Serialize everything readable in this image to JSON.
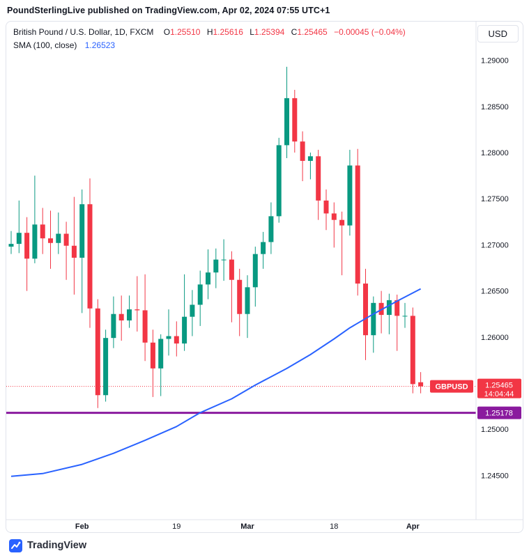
{
  "header": {
    "attribution": "PoundSterlingLive published on TradingView.com, Apr 02, 2024 07:55 UTC+1"
  },
  "legend": {
    "symbol": "British Pound / U.S. Dollar, 1D, FXCM",
    "o_label": "O",
    "o_value": "1.25510",
    "h_label": "H",
    "h_value": "1.25616",
    "l_label": "L",
    "l_value": "1.25394",
    "c_label": "C",
    "c_value": "1.25465",
    "change": "−0.00045 (−0.04%)",
    "sma_label": "SMA (100, close)",
    "sma_value": "1.26523"
  },
  "axis": {
    "currency_button": "USD"
  },
  "badges": {
    "symbol_tag": "GBPUSD",
    "last_price": "1.25465",
    "countdown": "14:04:44",
    "level_price": "1.25178"
  },
  "footer": {
    "brand": "TradingView"
  },
  "colors": {
    "up": "#089981",
    "down": "#f23645",
    "sma": "#2962ff",
    "level": "#8a1a9e",
    "axis_text": "#131722",
    "border": "#e0e3eb",
    "badge_text": "#ffffff"
  },
  "chart_data": {
    "type": "candlestick",
    "title": "British Pound / U.S. Dollar",
    "symbol": "GBPUSD",
    "interval": "1D",
    "exchange": "FXCM",
    "last": {
      "open": 1.2551,
      "high": 1.25616,
      "low": 1.25394,
      "close": 1.25465,
      "change": -0.00045,
      "change_pct": -0.04
    },
    "price_range": [
      1.2402,
      1.2942
    ],
    "levels": {
      "current_price": 1.25465,
      "horizontal_line": 1.25178
    },
    "y_ticks": [
      {
        "price": 1.29,
        "label": "1.29000"
      },
      {
        "price": 1.285,
        "label": "1.28500"
      },
      {
        "price": 1.28,
        "label": "1.28000"
      },
      {
        "price": 1.275,
        "label": "1.27500"
      },
      {
        "price": 1.27,
        "label": "1.27000"
      },
      {
        "price": 1.265,
        "label": "1.26500"
      },
      {
        "price": 1.26,
        "label": "1.26000"
      },
      {
        "price": 1.25,
        "label": "1.25000"
      },
      {
        "price": 1.245,
        "label": "1.24500"
      }
    ],
    "x_ticks": [
      {
        "index": 9,
        "label": "Feb",
        "major": true
      },
      {
        "index": 21,
        "label": "19",
        "major": false
      },
      {
        "index": 30,
        "label": "Mar",
        "major": true
      },
      {
        "index": 41,
        "label": "18",
        "major": false
      },
      {
        "index": 51,
        "label": "Apr",
        "major": true
      }
    ],
    "candle_columns": [
      "date",
      "open",
      "high",
      "low",
      "close"
    ],
    "candles": [
      [
        "Jan 19",
        1.2698,
        1.2715,
        1.269,
        1.2701
      ],
      [
        "Jan 22",
        1.2701,
        1.2748,
        1.2691,
        1.2713
      ],
      [
        "Jan 23",
        1.2713,
        1.273,
        1.265,
        1.2685
      ],
      [
        "Jan 24",
        1.2685,
        1.2775,
        1.268,
        1.2722
      ],
      [
        "Jan 25",
        1.2722,
        1.274,
        1.269,
        1.2707
      ],
      [
        "Jan 26",
        1.2707,
        1.2737,
        1.2674,
        1.2702
      ],
      [
        "Jan 29",
        1.2702,
        1.2735,
        1.269,
        1.2712
      ],
      [
        "Jan 30",
        1.2712,
        1.2725,
        1.2662,
        1.2699
      ],
      [
        "Jan 31",
        1.2699,
        1.2752,
        1.2646,
        1.2686
      ],
      [
        "Feb 1",
        1.2686,
        1.276,
        1.2626,
        1.2744
      ],
      [
        "Feb 2",
        1.2744,
        1.2772,
        1.261,
        1.2631
      ],
      [
        "Feb 5",
        1.2631,
        1.2641,
        1.2523,
        1.2537
      ],
      [
        "Feb 6",
        1.2537,
        1.2608,
        1.253,
        1.2599
      ],
      [
        "Feb 7",
        1.2599,
        1.2644,
        1.2588,
        1.2625
      ],
      [
        "Feb 8",
        1.2625,
        1.2645,
        1.2596,
        1.2618
      ],
      [
        "Feb 9",
        1.2618,
        1.2645,
        1.261,
        1.263
      ],
      [
        "Feb 12",
        1.263,
        1.2666,
        1.2606,
        1.2629
      ],
      [
        "Feb 13",
        1.2629,
        1.2668,
        1.2574,
        1.2594
      ],
      [
        "Feb 14",
        1.2594,
        1.2608,
        1.2535,
        1.2566
      ],
      [
        "Feb 15",
        1.2566,
        1.2603,
        1.2536,
        1.2598
      ],
      [
        "Feb 16",
        1.2598,
        1.263,
        1.258,
        1.2601
      ],
      [
        "Feb 19",
        1.2601,
        1.2617,
        1.2579,
        1.2593
      ],
      [
        "Feb 20",
        1.2593,
        1.2668,
        1.2585,
        1.2622
      ],
      [
        "Feb 21",
        1.2622,
        1.2651,
        1.2601,
        1.2635
      ],
      [
        "Feb 22",
        1.2635,
        1.2672,
        1.2612,
        1.2657
      ],
      [
        "Feb 23",
        1.2657,
        1.2695,
        1.2641,
        1.267
      ],
      [
        "Feb 26",
        1.267,
        1.2696,
        1.2653,
        1.2684
      ],
      [
        "Feb 27",
        1.2684,
        1.2706,
        1.2661,
        1.2684
      ],
      [
        "Feb 28",
        1.2684,
        1.2693,
        1.2616,
        1.2662
      ],
      [
        "Feb 29",
        1.2662,
        1.2674,
        1.2601,
        1.2625
      ],
      [
        "Mar 1",
        1.2625,
        1.2667,
        1.2599,
        1.2654
      ],
      [
        "Mar 4",
        1.2654,
        1.2698,
        1.2633,
        1.269
      ],
      [
        "Mar 5",
        1.269,
        1.2714,
        1.2674,
        1.2703
      ],
      [
        "Mar 6",
        1.2703,
        1.2746,
        1.269,
        1.2731
      ],
      [
        "Mar 7",
        1.2731,
        1.2816,
        1.2724,
        1.2808
      ],
      [
        "Mar 8",
        1.2808,
        1.2893,
        1.2794,
        1.2859
      ],
      [
        "Mar 11",
        1.2859,
        1.2868,
        1.28,
        1.2812
      ],
      [
        "Mar 12",
        1.2812,
        1.2823,
        1.2769,
        1.2791
      ],
      [
        "Mar 13",
        1.2791,
        1.28,
        1.2771,
        1.2796
      ],
      [
        "Mar 14",
        1.2796,
        1.2803,
        1.2727,
        1.2748
      ],
      [
        "Mar 15",
        1.2748,
        1.276,
        1.2716,
        1.2734
      ],
      [
        "Mar 18",
        1.2734,
        1.2746,
        1.2697,
        1.2727
      ],
      [
        "Mar 19",
        1.2727,
        1.2736,
        1.2667,
        1.2721
      ],
      [
        "Mar 20",
        1.2721,
        1.2803,
        1.271,
        1.2786
      ],
      [
        "Mar 21",
        1.2786,
        1.2804,
        1.2645,
        1.2658
      ],
      [
        "Mar 22",
        1.2658,
        1.2674,
        1.2575,
        1.2602
      ],
      [
        "Mar 25",
        1.2602,
        1.2644,
        1.2583,
        1.2637
      ],
      [
        "Mar 26",
        1.2637,
        1.265,
        1.2604,
        1.2624
      ],
      [
        "Mar 27",
        1.2624,
        1.2647,
        1.2603,
        1.264
      ],
      [
        "Mar 28",
        1.264,
        1.2646,
        1.2585,
        1.2623
      ],
      [
        "Mar 29",
        1.2623,
        1.2637,
        1.261,
        1.2623
      ],
      [
        "Apr 1",
        1.2623,
        1.2632,
        1.2539,
        1.2549
      ],
      [
        "Apr 2",
        1.2551,
        1.2562,
        1.2539,
        1.25465
      ]
    ],
    "sma": {
      "period": 100,
      "source": "close",
      "last_value": 1.26523,
      "points": [
        [
          0,
          1.2449
        ],
        [
          4,
          1.2452
        ],
        [
          9,
          1.2462
        ],
        [
          13,
          1.2474
        ],
        [
          17,
          1.2488
        ],
        [
          21,
          1.2503
        ],
        [
          24,
          1.2518
        ],
        [
          28,
          1.2533
        ],
        [
          31,
          1.2548
        ],
        [
          35,
          1.2566
        ],
        [
          38,
          1.2581
        ],
        [
          41,
          1.2598
        ],
        [
          43,
          1.261
        ],
        [
          46,
          1.2625
        ],
        [
          49,
          1.2639
        ],
        [
          52,
          1.26523
        ]
      ]
    }
  }
}
